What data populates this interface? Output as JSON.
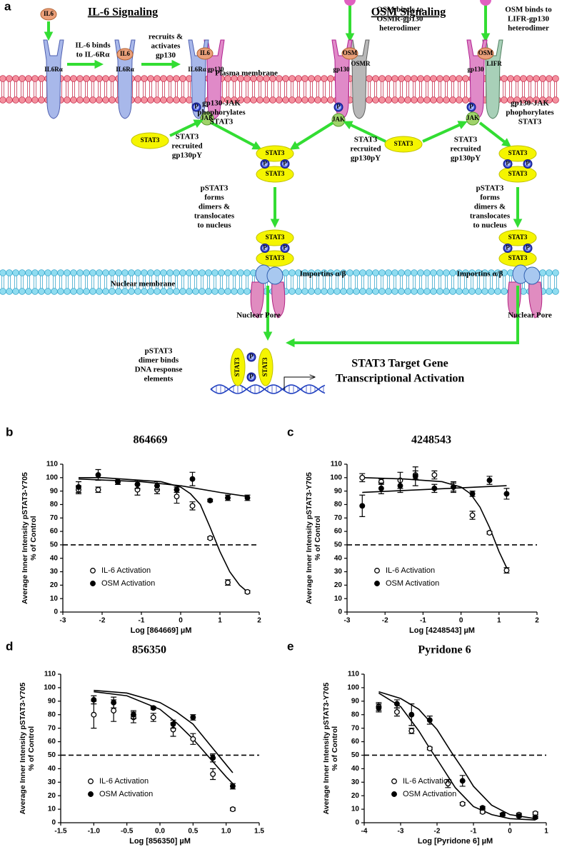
{
  "diagram": {
    "panel": "a",
    "headings": [
      "IL-6 Signaling",
      "OSM Signaling"
    ],
    "molecules": {
      "il6": "IL6",
      "il6r": "IL6Rα",
      "gp130": "gp130",
      "osm": "OSM",
      "osmr": "OSMR",
      "lifr": "LIFR",
      "jak": "JAK",
      "p": "P",
      "stat3": "STAT3"
    },
    "notes": [
      [
        "IL-6 binds",
        "to IL-6Rα"
      ],
      [
        "recruits &",
        "activates",
        "gp130"
      ],
      [
        "OSM binds to",
        "OSMR-gp130",
        "heterodimer"
      ],
      [
        "OSM binds to",
        "LIFR-gp130",
        "heterodimer"
      ],
      [
        "gp130-JAK",
        "phophorylates",
        "STAT3"
      ],
      [
        "STAT3",
        "recruited",
        "gp130pY"
      ],
      [
        "STAT3",
        "recruited",
        "gp130pY"
      ],
      [
        "STAT3",
        "recruited",
        "gp130pY"
      ],
      [
        "gp130-JAK",
        "phophorylates",
        "STAT3"
      ],
      [
        "pSTAT3",
        "forms",
        "dimers &",
        "translocates",
        "to nucleus"
      ],
      [
        "pSTAT3",
        "forms",
        "dimers &",
        "translocates",
        "to nucleus"
      ],
      [
        "pSTAT3",
        "dimer binds",
        "DNA response",
        "elements"
      ]
    ],
    "membranes": [
      "Plasma membrane",
      "Nuclear membrane"
    ],
    "pore_labels": [
      "Importins α/β",
      "Nuclear Pore",
      "Importins α/β",
      "Nuclear Pore"
    ],
    "outcome": [
      "STAT3 Target Gene",
      "Transcriptional Activation"
    ]
  },
  "chart_data": [
    {
      "type": "scatter",
      "panel": "b",
      "title": "864669",
      "ylabel": [
        "Average Inner Intensity pSTAT3-Y705",
        "% of Control"
      ],
      "xlabel": "Log [864669] µM",
      "xlim": [
        -3,
        2
      ],
      "xticks": [
        -3,
        -2,
        -1,
        0,
        1,
        2
      ],
      "ylim": [
        0,
        110
      ],
      "yticks": [
        0,
        10,
        20,
        30,
        40,
        50,
        60,
        70,
        80,
        90,
        100,
        110
      ],
      "hline": 50,
      "legend": "lower left",
      "x": [
        -2.6,
        -2.1,
        -1.6,
        -1.1,
        -0.6,
        -0.1,
        0.3,
        0.75,
        1.2,
        1.7
      ],
      "series": [
        {
          "name": "IL-6 Activation",
          "marker": "open",
          "color": "#000000",
          "values": [
            91,
            91,
            97,
            91,
            91,
            86,
            79,
            55,
            22,
            15
          ],
          "errors": [
            3,
            2,
            2,
            4,
            3,
            5,
            3,
            1,
            2,
            1
          ]
        },
        {
          "name": "OSM Activation",
          "marker": "filled",
          "color": "#000000",
          "values": [
            93,
            102,
            97,
            95,
            94,
            91,
            99,
            83,
            85,
            85
          ],
          "errors": [
            4,
            4,
            2,
            3,
            3,
            2,
            5,
            1,
            2,
            2
          ]
        }
      ],
      "fits": [
        {
          "x": [
            -2.6,
            -2,
            -1.5,
            -1,
            -0.5,
            0,
            0.25,
            0.5,
            0.75,
            1,
            1.25,
            1.5,
            1.7
          ],
          "values": [
            100,
            100,
            99,
            98,
            97,
            93,
            88,
            80,
            63,
            45,
            30,
            20,
            15
          ]
        },
        {
          "x": [
            -2.6,
            -1,
            0,
            1,
            1.7
          ],
          "values": [
            99,
            97,
            94,
            89,
            86
          ]
        }
      ]
    },
    {
      "type": "scatter",
      "panel": "c",
      "title": "4248543",
      "ylabel": [
        "Average Inner Intensity pSTAT3-Y705",
        "% of Control"
      ],
      "xlabel": "Log [4248543] µM",
      "xlim": [
        -3,
        2
      ],
      "xticks": [
        -3,
        -2,
        -1,
        0,
        1,
        2
      ],
      "ylim": [
        0,
        110
      ],
      "yticks": [
        0,
        10,
        20,
        30,
        40,
        50,
        60,
        70,
        80,
        90,
        100,
        110
      ],
      "hline": 50,
      "legend": "lower left",
      "x": [
        -2.6,
        -2.1,
        -1.6,
        -1.2,
        -0.7,
        -0.2,
        0.3,
        0.75,
        1.2
      ],
      "series": [
        {
          "name": "IL-6 Activation",
          "marker": "open",
          "color": "#000000",
          "values": [
            100,
            97,
            98,
            102,
            102,
            93,
            72,
            59,
            31
          ],
          "errors": [
            3,
            2,
            6,
            3,
            3,
            3,
            3,
            1,
            2
          ]
        },
        {
          "name": "OSM Activation",
          "marker": "filled",
          "color": "#000000",
          "values": [
            79,
            92,
            94,
            101,
            92,
            93,
            88,
            98,
            88
          ],
          "errors": [
            8,
            4,
            5,
            7,
            3,
            4,
            2,
            3,
            4
          ]
        }
      ],
      "fits": [
        {
          "x": [
            -2.6,
            -1.5,
            -0.5,
            0,
            0.25,
            0.5,
            0.75,
            1,
            1.2
          ],
          "values": [
            100,
            99,
            97,
            93,
            88,
            78,
            63,
            45,
            33
          ]
        },
        {
          "x": [
            -2.6,
            1.2
          ],
          "values": [
            89,
            94
          ]
        }
      ]
    },
    {
      "type": "scatter",
      "panel": "d",
      "title": "856350",
      "ylabel": [
        "Average Inner Intensity pSTAT3-Y705",
        "% of Control"
      ],
      "xlabel": "Log [856350] µM",
      "xlim": [
        -1.5,
        1.5
      ],
      "xticks": [
        -1.5,
        {
          "value": -1,
          "label": "-1.0"
        },
        -0.5,
        {
          "value": 0,
          "label": "0.0"
        },
        0.5,
        {
          "value": 1,
          "label": "1.0"
        },
        1.5
      ],
      "ylim": [
        0,
        110
      ],
      "yticks": [
        0,
        10,
        20,
        30,
        40,
        50,
        60,
        70,
        80,
        90,
        100,
        110
      ],
      "hline": 50,
      "legend": "lower left",
      "x": [
        -1,
        -0.7,
        -0.4,
        -0.1,
        0.2,
        0.5,
        0.8,
        1.1
      ],
      "series": [
        {
          "name": "IL-6 Activation",
          "marker": "open",
          "color": "#000000",
          "values": [
            80,
            83,
            78,
            78,
            69,
            62,
            36,
            10
          ],
          "errors": [
            10,
            8,
            4,
            3,
            5,
            4,
            4,
            1
          ]
        },
        {
          "name": "OSM Activation",
          "marker": "filled",
          "color": "#000000",
          "values": [
            91,
            89,
            80,
            85,
            73,
            78,
            48,
            27
          ],
          "errors": [
            3,
            4,
            3,
            1,
            3,
            2,
            3,
            2
          ]
        }
      ],
      "fits": [
        {
          "x": [
            -1,
            -0.5,
            0,
            0.25,
            0.5,
            0.75,
            1,
            1.1
          ],
          "values": [
            97,
            94,
            84,
            74,
            62,
            48,
            34,
            29
          ]
        },
        {
          "x": [
            -1,
            -0.5,
            0,
            0.25,
            0.5,
            0.75,
            1,
            1.1
          ],
          "values": [
            98,
            96,
            89,
            82,
            73,
            58,
            43,
            37
          ]
        }
      ]
    },
    {
      "type": "scatter",
      "panel": "e",
      "title": "Pyridone 6",
      "ylabel": [
        "Average Inner Intensity pSTAT3-Y705",
        "% of Control"
      ],
      "xlabel": "Log [Pyridone 6] µM",
      "xlim": [
        -4,
        1
      ],
      "xticks": [
        -4,
        -3,
        -2,
        -1,
        0,
        1
      ],
      "ylim": [
        0,
        110
      ],
      "yticks": [
        0,
        10,
        20,
        30,
        40,
        50,
        60,
        70,
        80,
        90,
        100,
        110
      ],
      "hline": 50,
      "legend": "lower left",
      "x": [
        -3.6,
        -3.1,
        -2.7,
        -2.2,
        -1.7,
        -1.3,
        -0.75,
        -0.2,
        0.25,
        0.7
      ],
      "series": [
        {
          "name": "IL-6 Activation",
          "marker": "open",
          "color": "#000000",
          "values": [
            86,
            82,
            68,
            55,
            29,
            14,
            8,
            6,
            6,
            7
          ],
          "errors": [
            3,
            3,
            2,
            1,
            3,
            1,
            1,
            1,
            1,
            1
          ]
        },
        {
          "name": "OSM Activation",
          "marker": "filled",
          "color": "#000000",
          "values": [
            85,
            88,
            80,
            76,
            null,
            31,
            11,
            6,
            5,
            4
          ],
          "errors": [
            3,
            3,
            8,
            3,
            null,
            4,
            1,
            1,
            1,
            1
          ]
        }
      ],
      "fits": [
        {
          "x": [
            -3.6,
            -3,
            -2.5,
            -2.2,
            -2,
            -1.5,
            -1,
            -0.5,
            0,
            0.7
          ],
          "values": [
            96,
            86,
            68,
            55,
            47,
            26,
            12,
            6,
            3,
            2
          ]
        },
        {
          "x": [
            -3.6,
            -3,
            -2.5,
            -2,
            -1.6,
            -1.3,
            -1,
            -0.5,
            0,
            0.7
          ],
          "values": [
            97,
            92,
            84,
            69,
            52,
            40,
            27,
            13,
            6,
            3
          ]
        }
      ]
    }
  ]
}
